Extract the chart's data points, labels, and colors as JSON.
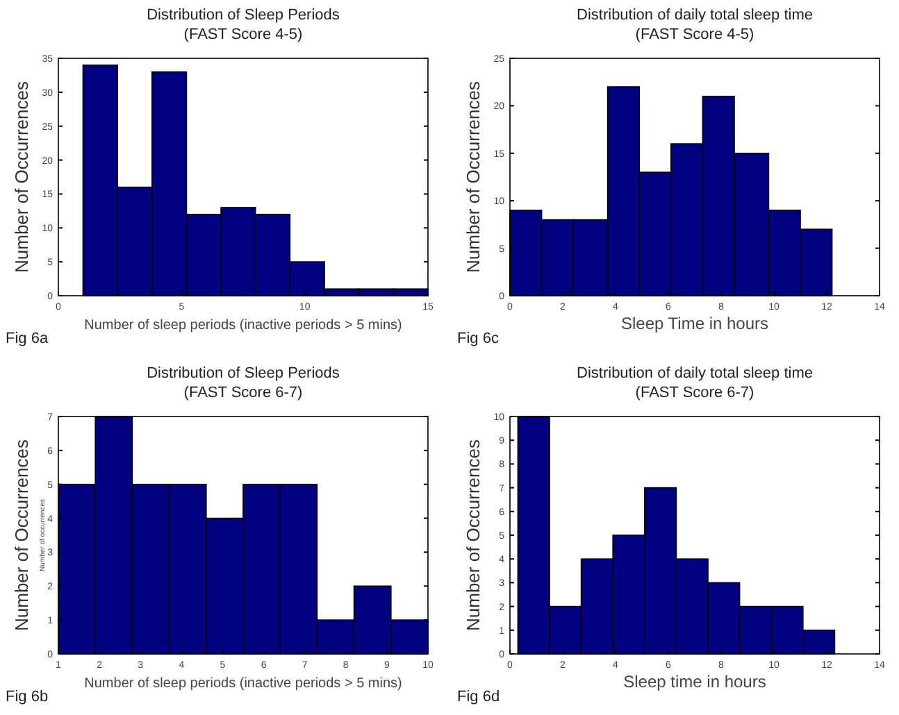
{
  "chart_data": [
    {
      "type": "histogram",
      "title": "Distribution of Sleep Periods",
      "subtitle": "(FAST Score 4-5)",
      "xlabel": "Number of sleep periods (inactive periods > 5 mins)",
      "ylabel": "Number of Occurrences",
      "bins": [
        1,
        2.4,
        3.8,
        5.2,
        6.6,
        8,
        9.4,
        10.8,
        12.2,
        13.6,
        15
      ],
      "values": [
        34,
        16,
        33,
        12,
        13,
        12,
        5,
        1,
        1,
        1
      ],
      "color": "#000080",
      "xlim": [
        0,
        15
      ],
      "xticks": [
        0,
        5,
        10,
        15
      ],
      "ylim": [
        0,
        35
      ],
      "yticks": [
        0,
        5,
        10,
        15,
        20,
        25,
        30,
        35
      ],
      "grid": false,
      "annotations": [
        "Fig 6a"
      ]
    },
    {
      "type": "histogram",
      "title": "Distribution of daily total sleep time",
      "subtitle": "(FAST Score 4-5)",
      "xlabel": "Sleep Time in hours",
      "ylabel": "Number of Occurrences",
      "bins": [
        0,
        1.2,
        2.4,
        3.7,
        4.9,
        6.1,
        7.3,
        8.5,
        9.8,
        11,
        12.2
      ],
      "values": [
        9,
        8,
        8,
        22,
        13,
        16,
        21,
        15,
        9,
        7
      ],
      "color": "#000080",
      "xlim": [
        0,
        14
      ],
      "xticks": [
        0,
        2,
        4,
        6,
        8,
        10,
        12,
        14
      ],
      "ylim": [
        0,
        25
      ],
      "yticks": [
        0,
        5,
        10,
        15,
        20,
        25
      ],
      "grid": false,
      "annotations": [
        "Fig 6c"
      ]
    },
    {
      "type": "histogram",
      "title": "Distribution of Sleep Periods",
      "subtitle": "(FAST Score 6-7)",
      "xlabel": "Number of sleep periods (inactive periods > 5 mins)",
      "ylabel": "Number of Occurrences",
      "bins": [
        1,
        1.9,
        2.8,
        3.7,
        4.6,
        5.5,
        6.4,
        7.3,
        8.2,
        9.1,
        10
      ],
      "values": [
        5,
        7,
        5,
        5,
        4,
        5,
        5,
        1,
        2,
        1
      ],
      "color": "#000080",
      "xlim": [
        1,
        10
      ],
      "xticks": [
        1,
        2,
        3,
        4,
        5,
        6,
        7,
        8,
        9,
        10
      ],
      "ylim": [
        0,
        7
      ],
      "yticks": [
        0,
        1,
        2,
        3,
        4,
        5,
        6,
        7
      ],
      "grid": false,
      "annotations": [
        "Fig 6b",
        "Number of occurrences"
      ]
    },
    {
      "type": "histogram",
      "title": "Distribution of daily total sleep time",
      "subtitle": "(FAST Score 6-7)",
      "xlabel": "Sleep time in hours",
      "ylabel": "Number of Occurrences",
      "bins": [
        0.3,
        1.5,
        2.7,
        3.9,
        5.1,
        6.3,
        7.5,
        8.7,
        9.9,
        11.1,
        12.3
      ],
      "values": [
        10,
        2,
        4,
        5,
        7,
        4,
        3,
        2,
        2,
        1
      ],
      "color": "#000080",
      "xlim": [
        0,
        14
      ],
      "xticks": [
        0,
        2,
        4,
        6,
        8,
        10,
        12,
        14
      ],
      "ylim": [
        0,
        10
      ],
      "yticks": [
        0,
        1,
        2,
        3,
        4,
        5,
        6,
        7,
        8,
        9,
        10
      ],
      "grid": false,
      "annotations": [
        "Fig 6d"
      ]
    }
  ]
}
